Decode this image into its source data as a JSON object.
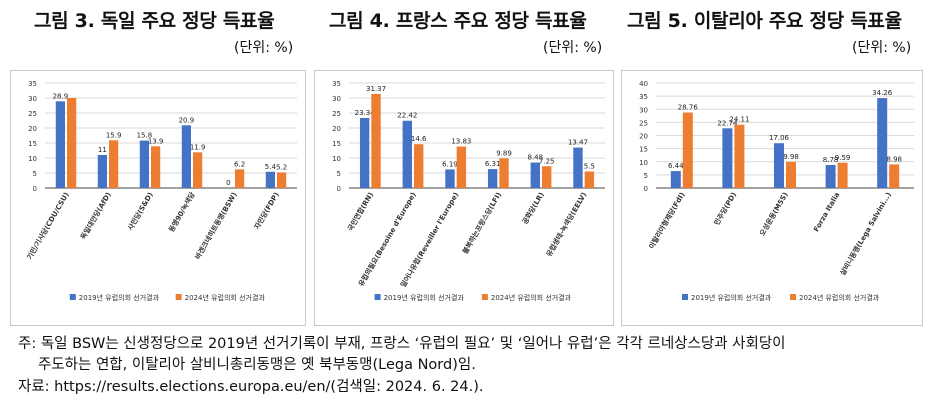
{
  "titles": [
    "그림 3. 독일 주요 정당 득표율",
    "그림 4. 프랑스 주요 정당 득표율",
    "그림 5. 이탈리아 주요 정당 득표율"
  ],
  "unit": "(단위: %)",
  "colors": {
    "s2019": "#4472c4",
    "s2024": "#ed7d31",
    "grid": "#d9d9d9",
    "axis": "#444444"
  },
  "chart_data": [
    {
      "type": "bar",
      "title": "그림 3. 독일 주요 정당 득표율",
      "ylim": [
        0,
        35
      ],
      "yticks": [
        0,
        5,
        10,
        15,
        20,
        25,
        30,
        35
      ],
      "grid": true,
      "legend": "bottom",
      "categories": [
        "기민/기사당(CDU/CSU)",
        "독일대안당(AfD)",
        "사민당(S&D)",
        "동맹90/녹색당",
        "바겐크네히트동맹(BSW)",
        "자민당(FDP)"
      ],
      "series": [
        {
          "name": "2019년 유럽의회 선거결과",
          "values": [
            28.9,
            11,
            15.8,
            20.9,
            0,
            5.4
          ],
          "labels": [
            "28.9",
            "11",
            "15.8",
            "20.9",
            "0",
            "5.4"
          ]
        },
        {
          "name": "2024년 유럽의회 선거결과",
          "values": [
            30.0,
            15.9,
            13.9,
            11.9,
            6.2,
            5.2
          ],
          "labels": [
            "",
            "15.9",
            "13.9",
            "11.9",
            "6.2",
            "5.2"
          ]
        }
      ]
    },
    {
      "type": "bar",
      "title": "그림 4. 프랑스 주요 정당 득표율",
      "ylim": [
        0,
        35
      ],
      "yticks": [
        0,
        5,
        10,
        15,
        20,
        25,
        30,
        35
      ],
      "grid": true,
      "legend": "bottom",
      "categories": [
        "국민연합(RN)",
        "유럽의필요(Besoine d'Europe)",
        "일어나유럽(Reveiller l'Europe)",
        "불복하는프랑스당(LFI)",
        "공화당(LR)",
        "유럽생태-녹색당(EELV)"
      ],
      "series": [
        {
          "name": "2019년 유럽의회 선거결과",
          "values": [
            23.34,
            22.42,
            6.19,
            6.31,
            8.48,
            13.47
          ],
          "labels": [
            "23.34",
            "22.42",
            "6.19",
            "6.31",
            "8.48",
            "13.47"
          ]
        },
        {
          "name": "2024년 유럽의회 선거결과",
          "values": [
            31.37,
            14.6,
            13.83,
            9.89,
            7.25,
            5.5
          ],
          "labels": [
            "31.37",
            "14.6",
            "13.83",
            "9.89",
            "7.25",
            "5.5"
          ]
        }
      ]
    },
    {
      "type": "bar",
      "title": "그림 5. 이탈리아 주요 정당 득표율",
      "ylim": [
        0,
        40
      ],
      "yticks": [
        0,
        5,
        10,
        15,
        20,
        25,
        30,
        35,
        40
      ],
      "grid": true,
      "legend": "bottom",
      "categories": [
        "이탈리아형제당(FdI)",
        "민주당(PD)",
        "오성운동(M5S)",
        "Forza Italia",
        "살비니동맹(Lega Salvini...)"
      ],
      "series": [
        {
          "name": "2019년 유럽의회 선거결과",
          "values": [
            6.44,
            22.74,
            17.06,
            8.78,
            34.26
          ],
          "labels": [
            "6.44",
            "22.74",
            "17.06",
            "8.78",
            "34.26"
          ]
        },
        {
          "name": "2024년 유럽의회 선거결과",
          "values": [
            28.76,
            24.11,
            9.98,
            9.59,
            8.98
          ],
          "labels": [
            "28.76",
            "24.11",
            "9.98",
            "9.59",
            "8.98"
          ]
        }
      ]
    }
  ],
  "notes": {
    "line1": "주: 독일 BSW는 신생정당으로 2019년 선거기록이 부재, 프랑스 ‘유럽의 필요’ 및 ‘일어나 유럽’은 각각 르네상스당과 사회당이",
    "line2": "주도하는 연합, 이탈리아 살비니총리동맹은 옛 북부동맹(Lega Nord)임.",
    "source": "자료: https://results.elections.europa.eu/en/(검색일: 2024. 6. 24.)."
  }
}
